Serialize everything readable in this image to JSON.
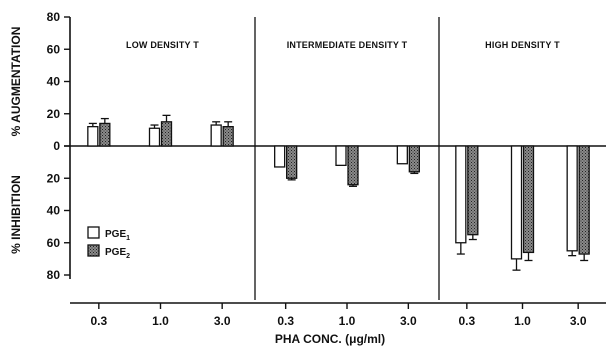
{
  "chart_data": {
    "type": "bar",
    "title": "",
    "xlabel": "PHA CONC. (μg/ml)",
    "ylabel_top": "% AUGMENTATION",
    "ylabel_bottom": "% INHIBITION",
    "yticks_top": [
      "80",
      "60",
      "40",
      "20",
      "0"
    ],
    "yticks_bottom": [
      "20",
      "40",
      "60",
      "80"
    ],
    "ylim": [
      -80,
      80
    ],
    "panels": [
      {
        "title": "LOW DENSITY T",
        "categories": [
          "0.3",
          "1.0",
          "3.0"
        ],
        "series": [
          {
            "name": "PGE1",
            "values": [
              12,
              11,
              13
            ],
            "errors": [
              2,
              2,
              2
            ]
          },
          {
            "name": "PGE2",
            "values": [
              14,
              15,
              12
            ],
            "errors": [
              3,
              4,
              3
            ]
          }
        ]
      },
      {
        "title": "INTERMEDIATE DENSITY T",
        "categories": [
          "0.3",
          "1.0",
          "3.0"
        ],
        "series": [
          {
            "name": "PGE1",
            "values": [
              -13,
              -12,
              -11
            ],
            "errors": [
              0,
              0,
              0
            ]
          },
          {
            "name": "PGE2",
            "values": [
              -20,
              -24,
              -16
            ],
            "errors": [
              1,
              1,
              1
            ]
          }
        ]
      },
      {
        "title": "HIGH DENSITY T",
        "categories": [
          "0.3",
          "1.0",
          "3.0"
        ],
        "series": [
          {
            "name": "PGE1",
            "values": [
              -60,
              -70,
              -65
            ],
            "errors": [
              7,
              7,
              3
            ]
          },
          {
            "name": "PGE2",
            "values": [
              -55,
              -66,
              -67
            ],
            "errors": [
              3,
              5,
              4
            ]
          }
        ]
      }
    ],
    "legend": {
      "placement": "left-lower",
      "items": [
        {
          "label": "PGE1",
          "sub": "1",
          "fill": "white"
        },
        {
          "label": "PGE2",
          "sub": "2",
          "fill": "stippled"
        }
      ]
    },
    "colors": {
      "ink": "#111111",
      "pge1_fill": "#ffffff",
      "pge2_fill": "#7a7a7a"
    }
  }
}
